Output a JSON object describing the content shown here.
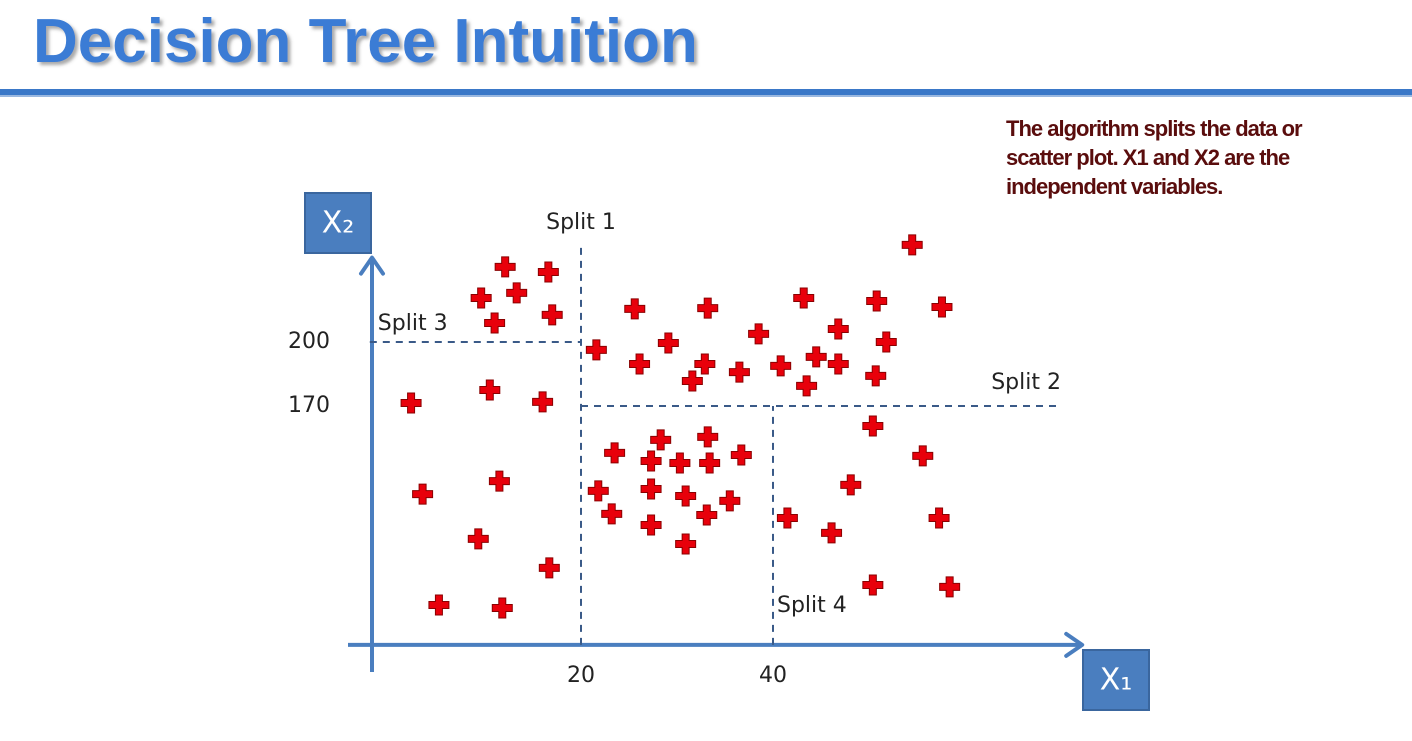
{
  "chart_data": {
    "type": "scatter",
    "title": "Decision Tree Intuition",
    "annotation": "The algorithm splits the data or scatter plot. X1 and X2 are the independent variables.",
    "x_label": "X₁",
    "y_label": "X₂",
    "xlim": [
      -2,
      72
    ],
    "ylim": [
      58,
      248
    ],
    "xticks": [
      20,
      40
    ],
    "yticks": [
      170,
      200
    ],
    "color": "#e8000b",
    "x": [
      12.1,
      16.6,
      9.6,
      13.3,
      11.0,
      17.0,
      2.3,
      10.5,
      16.0,
      3.5,
      11.5,
      9.3,
      16.7,
      5.2,
      11.8,
      25.6,
      33.2,
      21.6,
      29.1,
      26.1,
      32.9,
      31.6,
      36.5,
      38.5,
      43.2,
      46.8,
      50.8,
      54.5,
      57.6,
      51.8,
      40.8,
      44.5,
      46.8,
      43.5,
      50.7,
      28.3,
      33.2,
      23.5,
      27.3,
      30.3,
      33.4,
      36.7,
      21.8,
      27.3,
      30.9,
      35.5,
      23.2,
      33.1,
      27.3,
      30.9,
      50.4,
      55.6,
      48.1,
      41.5,
      46.1,
      57.3,
      50.4,
      58.4
    ],
    "y": [
      235.2,
      232.8,
      220.6,
      223.0,
      208.9,
      212.7,
      171.4,
      177.5,
      171.9,
      128.7,
      134.8,
      107.7,
      94.1,
      76.7,
      75.3,
      215.5,
      215.9,
      196.3,
      199.5,
      189.7,
      189.7,
      181.7,
      185.9,
      203.8,
      220.6,
      206.1,
      219.2,
      245.5,
      216.4,
      200.0,
      188.8,
      193.0,
      189.7,
      179.4,
      184.1,
      154.1,
      155.5,
      148.0,
      144.2,
      143.3,
      143.3,
      147.0,
      130.2,
      131.1,
      127.8,
      125.5,
      119.4,
      118.9,
      114.2,
      105.3,
      160.6,
      146.6,
      133.0,
      117.5,
      110.5,
      117.5,
      86.1,
      85.2
    ],
    "splits": [
      {
        "label": "Split 1",
        "axis": "x",
        "value": 20,
        "range": [
          58,
          245
        ]
      },
      {
        "label": "Split 2",
        "axis": "y",
        "value": 170,
        "range": [
          20,
          70
        ]
      },
      {
        "label": "Split 3",
        "axis": "y",
        "value": 200,
        "range": [
          -2,
          20
        ]
      },
      {
        "label": "Split 4",
        "axis": "x",
        "value": 40,
        "range": [
          58,
          170
        ]
      }
    ]
  }
}
